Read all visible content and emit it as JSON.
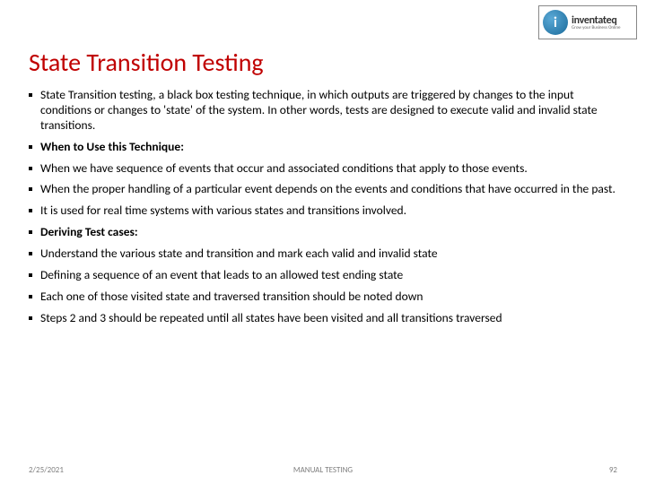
{
  "logo": {
    "circle_letter": "i",
    "main": "inventateq",
    "sub": "Grow your Business Online"
  },
  "title": "State Transition Testing",
  "bullets": [
    {
      "text": "State Transition testing, a black box testing technique, in which outputs are triggered by changes to the input conditions or changes to 'state' of the system. In other words, tests are designed to execute valid and invalid state transitions.",
      "bold": false
    },
    {
      "text": "When to Use this Technique:",
      "bold": true
    },
    {
      "text": "When we have sequence of events that occur and associated conditions that apply to those events.",
      "bold": false
    },
    {
      "text": "When the proper handling of a particular event depends on the events and conditions that have occurred in the past.",
      "bold": false
    },
    {
      "text": "It is used for real time systems with various states and transitions involved.",
      "bold": false
    },
    {
      "text": "Deriving Test cases:",
      "bold": true
    },
    {
      "text": "Understand the various state and transition and mark each valid and invalid state",
      "bold": false
    },
    {
      "text": "Defining a sequence of an event that leads to an allowed test ending state",
      "bold": false
    },
    {
      "text": "Each one of those visited state and traversed transition should be noted down",
      "bold": false
    },
    {
      "text": "Steps 2 and 3 should be repeated until all states have been visited and all transitions traversed",
      "bold": false
    }
  ],
  "footer": {
    "date": "2/25/2021",
    "center": "MANUAL TESTING",
    "page": "92"
  },
  "colors": {
    "title_color": "#c00000",
    "text_color": "#000000",
    "footer_color": "#808080",
    "background": "#ffffff"
  }
}
